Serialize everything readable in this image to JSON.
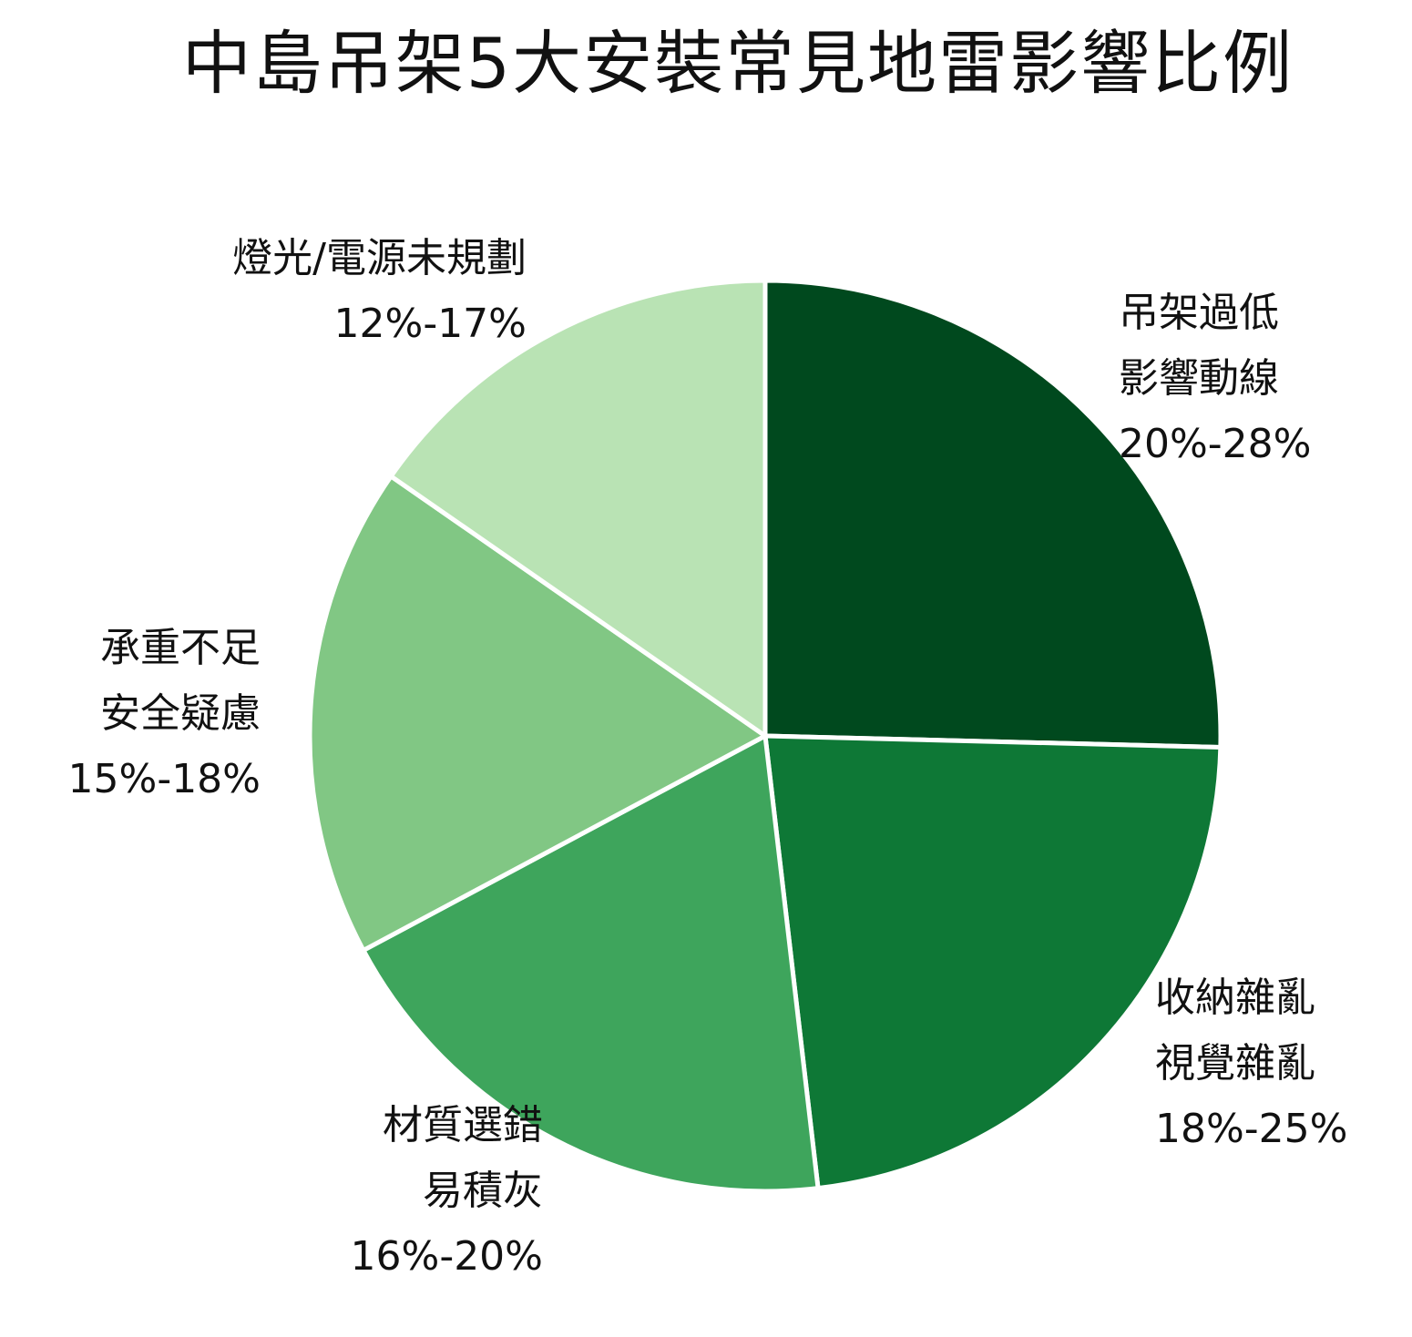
{
  "chart_data": {
    "type": "pie",
    "title": "中島吊架5大安裝常見地雷影響比例",
    "slices": [
      {
        "label_lines": [
          "吊架過低",
          "影響動線"
        ],
        "range": "20%-28%",
        "value": 24,
        "color": "#00491e"
      },
      {
        "label_lines": [
          "收納雜亂",
          "視覺雜亂"
        ],
        "range": "18%-25%",
        "value": 21.5,
        "color": "#0e7836"
      },
      {
        "label_lines": [
          "材質選錯",
          "易積灰"
        ],
        "range": "16%-20%",
        "value": 18,
        "color": "#3ea55c"
      },
      {
        "label_lines": [
          "承重不足",
          "安全疑慮"
        ],
        "range": "15%-18%",
        "value": 16.5,
        "color": "#81c784"
      },
      {
        "label_lines": [
          "燈光/電源未規劃"
        ],
        "range": "12%-17%",
        "value": 14.5,
        "color": "#b9e3b4"
      }
    ],
    "start_angle": "top",
    "direction": "clockwise",
    "legend": "none"
  }
}
